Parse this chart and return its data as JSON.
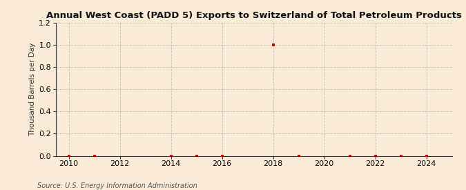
{
  "title": "Annual West Coast (PADD 5) Exports to Switzerland of Total Petroleum Products",
  "ylabel": "Thousand Barrels per Day",
  "source": "Source: U.S. Energy Information Administration",
  "xlim": [
    2009.5,
    2025
  ],
  "ylim": [
    0,
    1.2
  ],
  "xticks": [
    2010,
    2012,
    2014,
    2016,
    2018,
    2020,
    2022,
    2024
  ],
  "yticks": [
    0.0,
    0.2,
    0.4,
    0.6,
    0.8,
    1.0,
    1.2
  ],
  "background_color": "#faebd7",
  "grid_color": "#bbbbbb",
  "data_points": {
    "years": [
      2010,
      2011,
      2014,
      2015,
      2016,
      2018,
      2019,
      2021,
      2022,
      2023,
      2024
    ],
    "values": [
      0.0,
      0.0,
      0.0,
      0.0,
      0.0,
      1.0,
      0.0,
      0.0,
      0.0,
      0.0,
      0.0
    ]
  },
  "point_color": "#cc0000",
  "point_size": 12,
  "title_fontsize": 9.5,
  "label_fontsize": 7.5,
  "tick_fontsize": 8,
  "source_fontsize": 7
}
